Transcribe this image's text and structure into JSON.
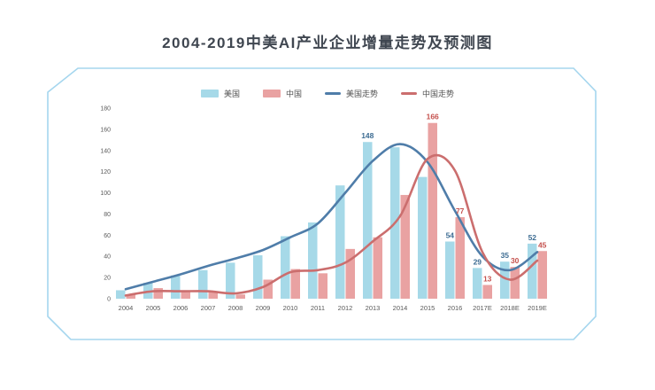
{
  "title": "2004-2019中美AI产业企业增量走势及预测图",
  "legend": {
    "items": [
      {
        "label": "美国",
        "type": "bar",
        "color": "#a6d9e8"
      },
      {
        "label": "中国",
        "type": "bar",
        "color": "#e9a2a2"
      },
      {
        "label": "美国走势",
        "type": "line",
        "color": "#4f7da9"
      },
      {
        "label": "中国走势",
        "type": "line",
        "color": "#cb6e6e"
      }
    ]
  },
  "chart_data": {
    "type": "bar",
    "subtype": "grouped bars with two smoothed trend lines, forecast years suffixed E",
    "title": "2004-2019中美AI产业企业增量走势及预测图",
    "categories": [
      "2004",
      "2005",
      "2006",
      "2007",
      "2008",
      "2009",
      "2010",
      "2011",
      "2012",
      "2013",
      "2014",
      "2015",
      "2016",
      "2017E",
      "2018E",
      "2019E"
    ],
    "series": [
      {
        "name": "美国",
        "type": "bar",
        "color": "#a6d9e8",
        "label_color": "#3e6d93",
        "values": [
          8,
          15,
          22,
          27,
          34,
          41,
          59,
          72,
          107,
          148,
          143,
          115,
          54,
          29,
          35,
          52
        ],
        "labels": [
          null,
          null,
          null,
          null,
          null,
          null,
          null,
          null,
          null,
          148,
          null,
          null,
          54,
          29,
          35,
          52
        ]
      },
      {
        "name": "中国",
        "type": "bar",
        "color": "#e9a2a2",
        "label_color": "#c5524e",
        "values": [
          4,
          10,
          7,
          7,
          4,
          18,
          28,
          24,
          47,
          58,
          98,
          166,
          77,
          13,
          30,
          45
        ],
        "labels": [
          null,
          null,
          null,
          null,
          null,
          null,
          null,
          null,
          null,
          null,
          null,
          166,
          77,
          13,
          30,
          45
        ]
      },
      {
        "name": "美国走势",
        "type": "line",
        "color": "#4f7da9",
        "values": [
          9,
          16,
          23,
          31,
          38,
          46,
          58,
          71,
          100,
          130,
          146,
          129,
          83,
          40,
          27,
          44
        ]
      },
      {
        "name": "中国走势",
        "type": "line",
        "color": "#cb6e6e",
        "values": [
          3,
          7,
          7,
          7,
          5,
          11,
          25,
          27,
          34,
          54,
          78,
          132,
          121,
          44,
          18,
          36
        ]
      }
    ],
    "xlabel": "",
    "ylabel": "",
    "ylim": [
      0,
      180
    ],
    "y_ticks": [
      0,
      20,
      40,
      60,
      80,
      100,
      120,
      140,
      160,
      180
    ],
    "grid": false,
    "legend_position": "top-center"
  },
  "colors": {
    "frame": "#a5d6ee",
    "title_text": "#3f4650",
    "axis_text": "#5a5a5a",
    "background": "#ffffff"
  }
}
